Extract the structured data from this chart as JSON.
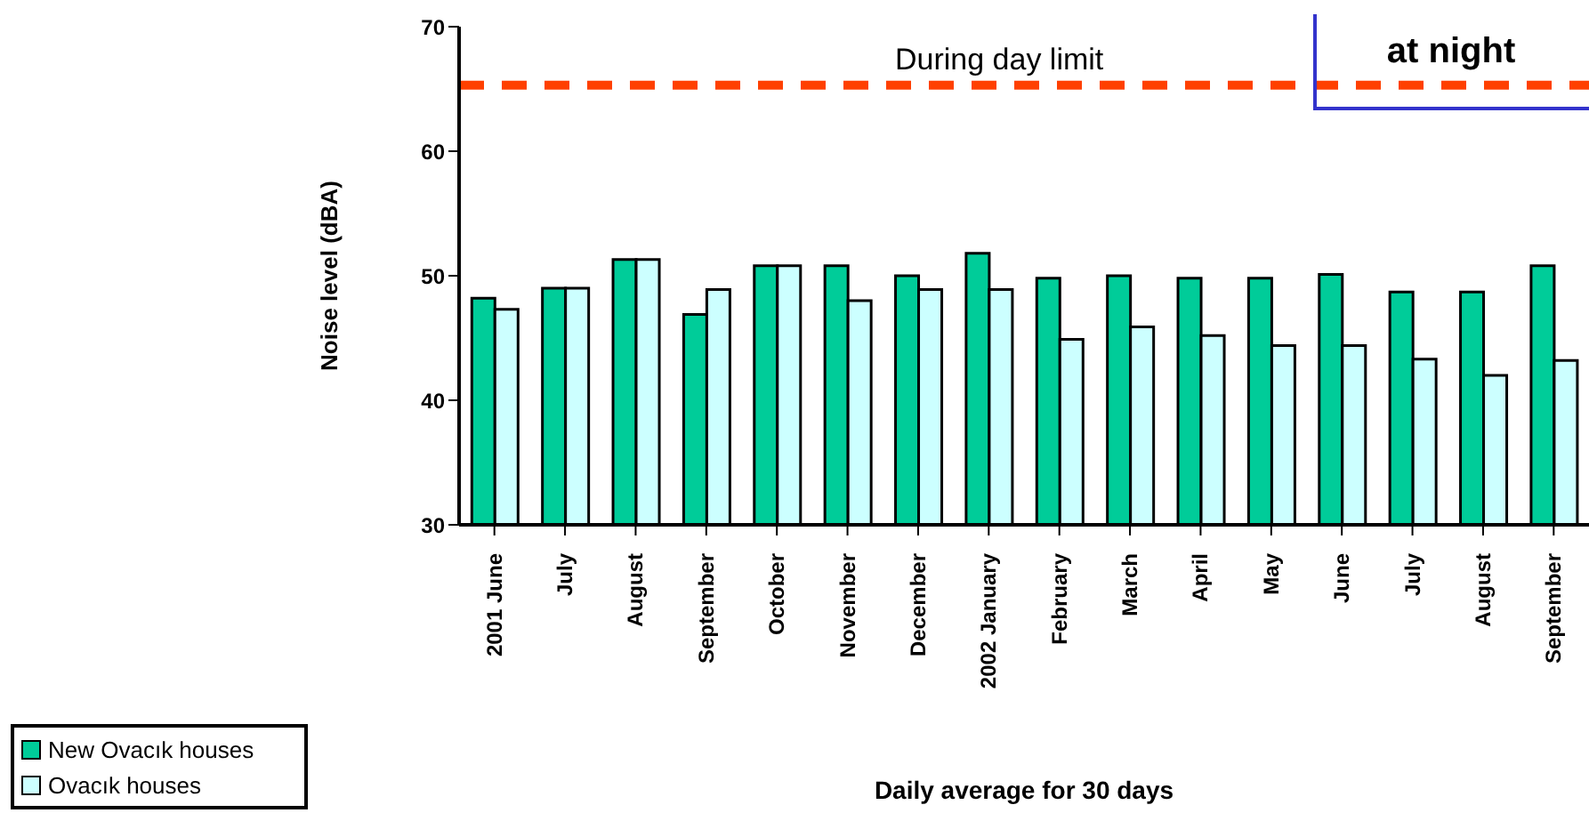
{
  "chart_data": {
    "type": "bar",
    "ylabel": "Noise level (dBA)",
    "xlabel": "Daily average for 30 days",
    "categories": [
      "2001 June",
      "July",
      "August",
      "September",
      "October",
      "November",
      "December",
      "2002 January",
      "February",
      "March",
      "April",
      "May",
      "June",
      "July",
      "August",
      "September"
    ],
    "series": [
      {
        "name": "New Ovacık houses",
        "color": "#00cc99",
        "values": [
          48.2,
          49.0,
          51.3,
          46.9,
          50.8,
          50.8,
          50.0,
          51.8,
          49.8,
          50.0,
          49.8,
          49.8,
          50.1,
          48.7,
          48.7,
          50.8
        ]
      },
      {
        "name": "Ovacık houses",
        "color": "#ccffff",
        "values": [
          47.3,
          49.0,
          51.3,
          48.9,
          50.8,
          48.0,
          48.9,
          48.9,
          44.9,
          45.9,
          45.2,
          44.4,
          44.4,
          43.3,
          42.0,
          43.2
        ]
      }
    ],
    "ylim": [
      30,
      70
    ],
    "yticks": [
      30,
      40,
      50,
      60,
      70
    ],
    "grid": false,
    "legend": "bottom left",
    "ref_lines": [
      {
        "axis": "y",
        "value": 65.3,
        "label": "During day limit",
        "color": "#ff4000",
        "line_style": "dashed"
      }
    ],
    "annotations": [
      "at night"
    ]
  }
}
